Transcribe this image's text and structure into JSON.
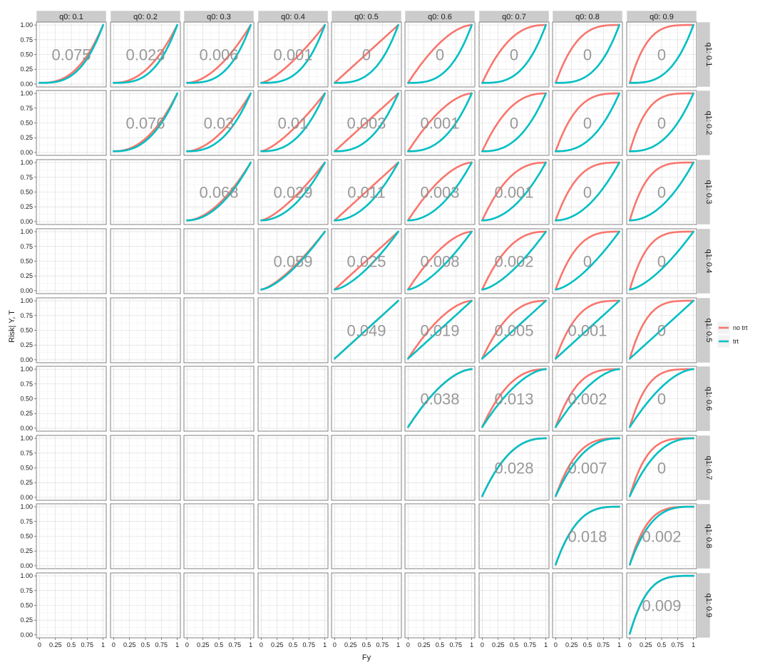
{
  "chart_data": {
    "type": "line",
    "facet_cols": {
      "prefix": "q0: ",
      "values": [
        "0.1",
        "0.2",
        "0.3",
        "0.4",
        "0.5",
        "0.6",
        "0.7",
        "0.8",
        "0.9"
      ]
    },
    "facet_rows": {
      "prefix": "q1: ",
      "values": [
        "0.1",
        "0.2",
        "0.3",
        "0.4",
        "0.5",
        "0.6",
        "0.7",
        "0.8",
        "0.9"
      ]
    },
    "xlabel": "Fy",
    "ylabel": "Risk| Y, T",
    "xlim": [
      0,
      1
    ],
    "ylim": [
      0,
      1
    ],
    "x_ticks": [
      "0",
      "0.25",
      "0.5",
      "0.75",
      "1"
    ],
    "y_ticks": [
      "0.00",
      "0.25",
      "0.50",
      "0.75",
      "1.00"
    ],
    "grid": true,
    "legend": {
      "position": "right",
      "entries": [
        {
          "name": "no trt",
          "color": "#f8766d"
        },
        {
          "name": "trt",
          "color": "#00bfc4"
        }
      ]
    },
    "annotations": [
      [
        "0.075",
        "0.023",
        "0.006",
        "0.001",
        "0",
        "0",
        "0",
        "0",
        "0"
      ],
      [
        null,
        "0.076",
        "0.03",
        "0.01",
        "0.003",
        "0.001",
        "0",
        "0",
        "0"
      ],
      [
        null,
        null,
        "0.068",
        "0.029",
        "0.011",
        "0.003",
        "0.001",
        "0",
        "0"
      ],
      [
        null,
        null,
        null,
        "0.059",
        "0.025",
        "0.008",
        "0.002",
        "0",
        "0"
      ],
      [
        null,
        null,
        null,
        null,
        "0.049",
        "0.019",
        "0.005",
        "0.001",
        "0"
      ],
      [
        null,
        null,
        null,
        null,
        null,
        "0.038",
        "0.013",
        "0.002",
        "0"
      ],
      [
        null,
        null,
        null,
        null,
        null,
        null,
        "0.028",
        "0.007",
        "0"
      ],
      [
        null,
        null,
        null,
        null,
        null,
        null,
        null,
        "0.018",
        "0.002"
      ],
      [
        null,
        null,
        null,
        null,
        null,
        null,
        null,
        null,
        "0.009"
      ]
    ]
  }
}
